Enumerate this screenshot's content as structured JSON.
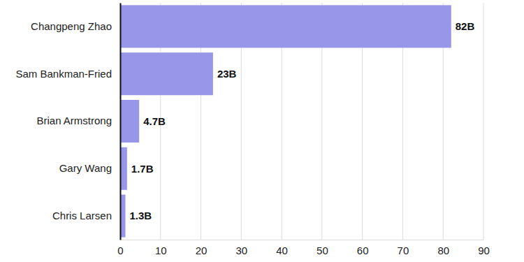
{
  "chart_data": {
    "type": "bar",
    "orientation": "horizontal",
    "categories": [
      "Changpeng Zhao",
      "Sam Bankman-Fried",
      "Brian Armstrong",
      "Gary Wang",
      "Chris Larsen"
    ],
    "values": [
      82,
      23,
      4.7,
      1.7,
      1.3
    ],
    "value_labels": [
      "82B",
      "23B",
      "4.7B",
      "1.7B",
      "1.3B"
    ],
    "color": "#9896e9",
    "xlim": [
      0,
      90
    ],
    "xticks": [
      0,
      10,
      20,
      30,
      40,
      50,
      60,
      70,
      80,
      90
    ],
    "grid": true,
    "data_labels": true
  }
}
